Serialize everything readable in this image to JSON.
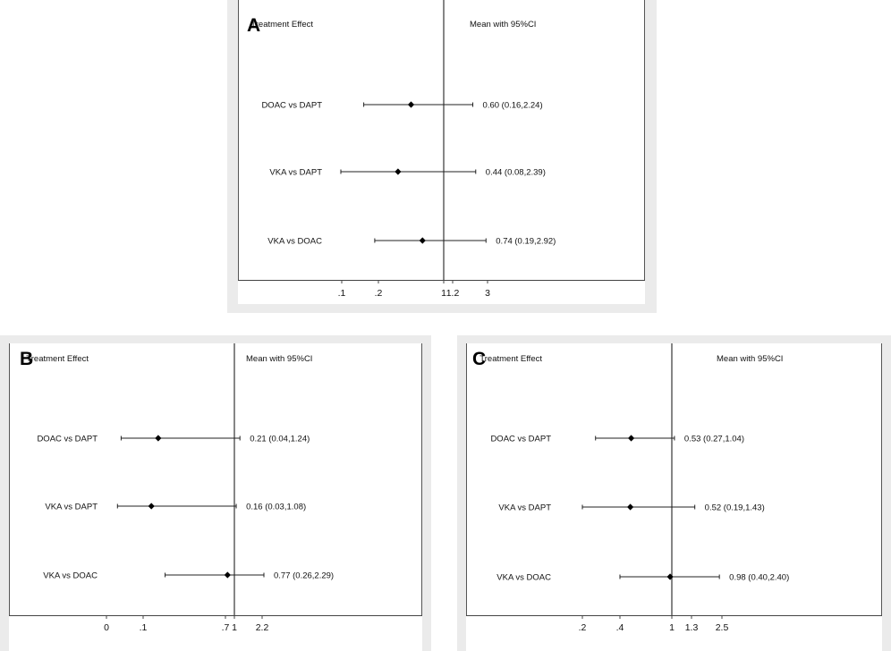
{
  "chart_data": [
    {
      "panel_label": "A",
      "type": "forest",
      "header_left": "Treatment Effect",
      "header_right": "Mean with 95%CI",
      "reference_line": 1,
      "ticks": [
        ".1",
        ".2",
        "1",
        "1.2",
        "3"
      ],
      "rows": [
        {
          "label": "DOAC vs DAPT",
          "mean": 0.6,
          "lower": 0.16,
          "upper": 2.24,
          "text": "0.60 (0.16,2.24)"
        },
        {
          "label": "VKA vs DAPT",
          "mean": 0.44,
          "lower": 0.08,
          "upper": 2.39,
          "text": "0.44 (0.08,2.39)"
        },
        {
          "label": "VKA vs DOAC",
          "mean": 0.74,
          "lower": 0.19,
          "upper": 2.92,
          "text": "0.74 (0.19,2.92)"
        }
      ]
    },
    {
      "panel_label": "B",
      "type": "forest",
      "header_left": "Treatment Effect",
      "header_right": "Mean with 95%CI",
      "reference_line": 1,
      "ticks": [
        "0",
        ".1",
        ".7",
        "1",
        "2.2"
      ],
      "rows": [
        {
          "label": "DOAC vs DAPT",
          "mean": 0.21,
          "lower": 0.04,
          "upper": 1.24,
          "text": "0.21 (0.04,1.24)"
        },
        {
          "label": "VKA vs DAPT",
          "mean": 0.16,
          "lower": 0.03,
          "upper": 1.08,
          "text": "0.16 (0.03,1.08)"
        },
        {
          "label": "VKA vs DOAC",
          "mean": 0.77,
          "lower": 0.26,
          "upper": 2.29,
          "text": "0.77 (0.26,2.29)"
        }
      ]
    },
    {
      "panel_label": "C",
      "type": "forest",
      "header_left": "Treatment Effect",
      "header_right": "Mean with 95%CI",
      "reference_line": 1,
      "ticks": [
        ".2",
        ".4",
        "1",
        "1.3",
        "2.5"
      ],
      "rows": [
        {
          "label": "DOAC vs DAPT",
          "mean": 0.53,
          "lower": 0.27,
          "upper": 1.04,
          "text": "0.53 (0.27,1.04)"
        },
        {
          "label": "VKA vs DAPT",
          "mean": 0.52,
          "lower": 0.19,
          "upper": 1.43,
          "text": "0.52 (0.19,1.43)"
        },
        {
          "label": "VKA vs DOAC",
          "mean": 0.98,
          "lower": 0.4,
          "upper": 2.4,
          "text": "0.98 (0.40,2.40)"
        }
      ]
    }
  ]
}
